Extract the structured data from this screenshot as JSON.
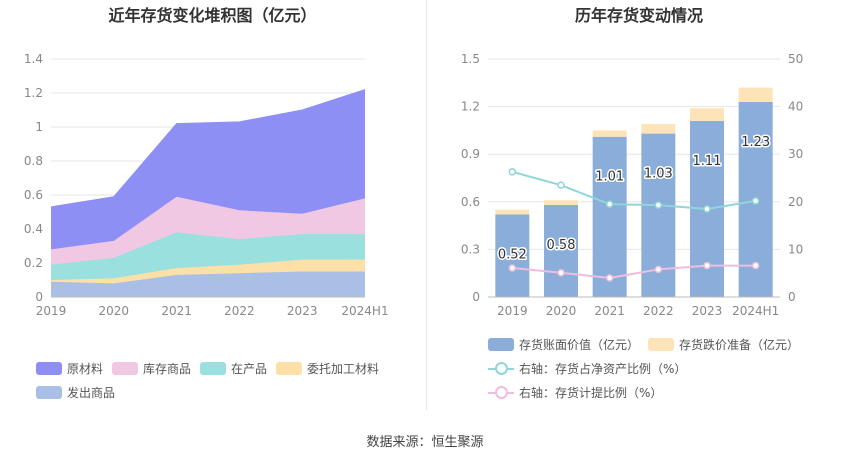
{
  "source": "数据来源：恒生聚源",
  "colors": {
    "raw": "#8e8ff5",
    "stock": "#f0c8e4",
    "wip": "#99e0de",
    "consign": "#fde0a8",
    "shipped": "#aabfe6",
    "book": "#8badd9",
    "reserve": "#fde4b8",
    "line1": "#8fd6d9",
    "line2": "#eebde0"
  },
  "chart_data": [
    {
      "type": "area",
      "title": "近年存货变化堆积图（亿元）",
      "categories": [
        "2019",
        "2020",
        "2021",
        "2022",
        "2023",
        "2024H1"
      ],
      "ylim": [
        0,
        1.4
      ],
      "yticks": [
        "0",
        "0.2",
        "0.4",
        "0.6",
        "0.8",
        "1",
        "1.2",
        "1.4"
      ],
      "stacked": true,
      "series": [
        {
          "name": "发出商品",
          "values": [
            0.09,
            0.08,
            0.13,
            0.14,
            0.15,
            0.15
          ]
        },
        {
          "name": "委托加工材料",
          "values": [
            0.01,
            0.03,
            0.04,
            0.05,
            0.07,
            0.07
          ]
        },
        {
          "name": "在产品",
          "values": [
            0.09,
            0.12,
            0.21,
            0.15,
            0.15,
            0.15
          ]
        },
        {
          "name": "库存商品",
          "values": [
            0.09,
            0.1,
            0.21,
            0.17,
            0.12,
            0.21
          ]
        },
        {
          "name": "原材料",
          "values": [
            0.25,
            0.26,
            0.43,
            0.52,
            0.61,
            0.64
          ]
        }
      ],
      "legend_order": [
        "原材料",
        "库存商品",
        "在产品",
        "委托加工材料",
        "发出商品"
      ],
      "grid": true
    },
    {
      "type": "bar",
      "title": "历年存货变动情况",
      "categories": [
        "2019",
        "2020",
        "2021",
        "2022",
        "2023",
        "2024H1"
      ],
      "ylim_left": [
        0,
        1.5
      ],
      "yticks_left": [
        "0",
        "0.3",
        "0.6",
        "0.9",
        "1.2",
        "1.5"
      ],
      "ylim_right": [
        0,
        50
      ],
      "yticks_right": [
        "0",
        "10",
        "20",
        "30",
        "40",
        "50"
      ],
      "stacked": true,
      "series": [
        {
          "name": "存货账面价值（亿元）",
          "axis": "left",
          "values": [
            0.52,
            0.58,
            1.01,
            1.03,
            1.11,
            1.23
          ],
          "labels": [
            "0.52",
            "0.58",
            "1.01",
            "1.03",
            "1.11",
            "1.23"
          ]
        },
        {
          "name": "存货跌价准备（亿元）",
          "axis": "left",
          "values": [
            0.03,
            0.03,
            0.04,
            0.06,
            0.08,
            0.09
          ]
        },
        {
          "name": "右轴：存货占净资产比例（%）",
          "type": "line",
          "axis": "right",
          "values": [
            26.3,
            23.5,
            19.5,
            19.3,
            18.5,
            20.2
          ]
        },
        {
          "name": "右轴：存货计提比例（%）",
          "type": "line",
          "axis": "right",
          "values": [
            6.1,
            5.1,
            4.0,
            5.8,
            6.6,
            6.6
          ]
        }
      ],
      "grid": true
    }
  ]
}
